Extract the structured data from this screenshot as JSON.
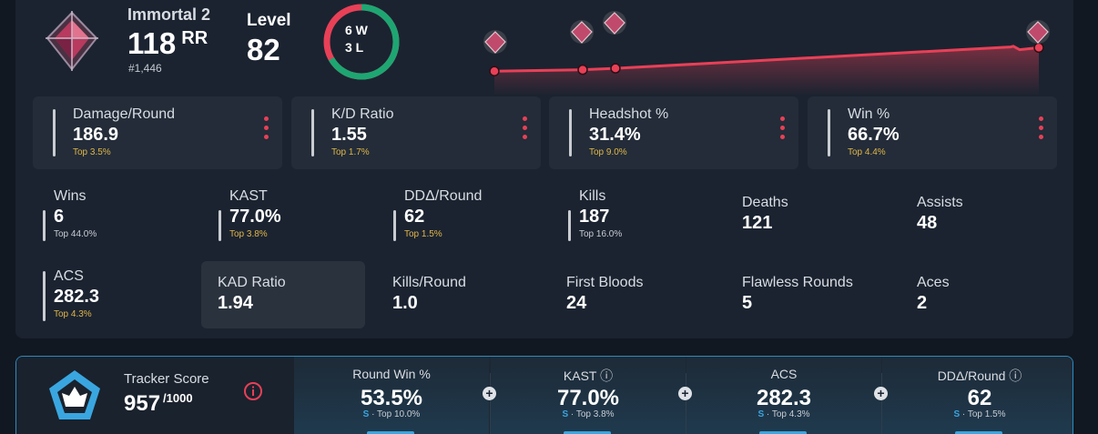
{
  "rank": {
    "name": "Immortal 2",
    "rr_value": "118",
    "rr_unit": "RR",
    "position": "#1,446",
    "icon": "immortal-rank-icon"
  },
  "level": {
    "label": "Level",
    "value": "82"
  },
  "record": {
    "wins": "6 W",
    "losses": "3 L",
    "win_fraction": 0.667,
    "win_color": "#1ea672",
    "loss_color": "#e84057"
  },
  "rr_trend": {
    "series": [
      10,
      14,
      18,
      80,
      82,
      72,
      78
    ],
    "rank_badges": [
      "immortal-rank-icon",
      "immortal-rank-icon",
      "immortal-rank-icon",
      "immortal-rank-icon"
    ],
    "line_color": "#e84057"
  },
  "cards": [
    {
      "label": "Damage/Round",
      "value": "186.9",
      "top": "Top 3.5%"
    },
    {
      "label": "K/D Ratio",
      "value": "1.55",
      "top": "Top 1.7%"
    },
    {
      "label": "Headshot %",
      "value": "31.4%",
      "top": "Top 9.0%"
    },
    {
      "label": "Win %",
      "value": "66.7%",
      "top": "Top 4.4%"
    }
  ],
  "stats_row1": [
    {
      "label": "Wins",
      "value": "6",
      "top": "Top 44.0%",
      "top_color": "#c9ced6"
    },
    {
      "label": "KAST",
      "value": "77.0%",
      "top": "Top 3.8%",
      "top_color": "#e1b64a"
    },
    {
      "label": "DDΔ/Round",
      "value": "62",
      "top": "Top 1.5%",
      "top_color": "#e1b64a"
    },
    {
      "label": "Kills",
      "value": "187",
      "top": "Top 16.0%",
      "top_color": "#c9ced6"
    },
    {
      "label": "Deaths",
      "value": "121"
    },
    {
      "label": "Assists",
      "value": "48"
    }
  ],
  "stats_row2": [
    {
      "label": "ACS",
      "value": "282.3",
      "top": "Top 4.3%",
      "top_color": "#e1b64a"
    },
    {
      "label": "KAD Ratio",
      "value": "1.94"
    },
    {
      "label": "Kills/Round",
      "value": "1.0"
    },
    {
      "label": "First Bloods",
      "value": "24"
    },
    {
      "label": "Flawless Rounds",
      "value": "5"
    },
    {
      "label": "Aces",
      "value": "2"
    }
  ],
  "tracker": {
    "label": "Tracker Score",
    "value": "957",
    "max": "/1000",
    "icon": "tracker-score-icon",
    "info_icon": "info-icon",
    "segments": [
      {
        "label": "Round Win %",
        "value": "53.5%",
        "grade": "S",
        "top": "· Top 10.0%"
      },
      {
        "label": "KAST ⓘ",
        "value": "77.0%",
        "grade": "S",
        "top": "· Top 3.8%"
      },
      {
        "label": "ACS",
        "value": "282.3",
        "grade": "S",
        "top": "· Top 4.3%"
      },
      {
        "label": "DDΔ/Round ⓘ",
        "value": "62",
        "grade": "S",
        "top": "· Top 1.5%"
      }
    ],
    "plus": "+"
  }
}
